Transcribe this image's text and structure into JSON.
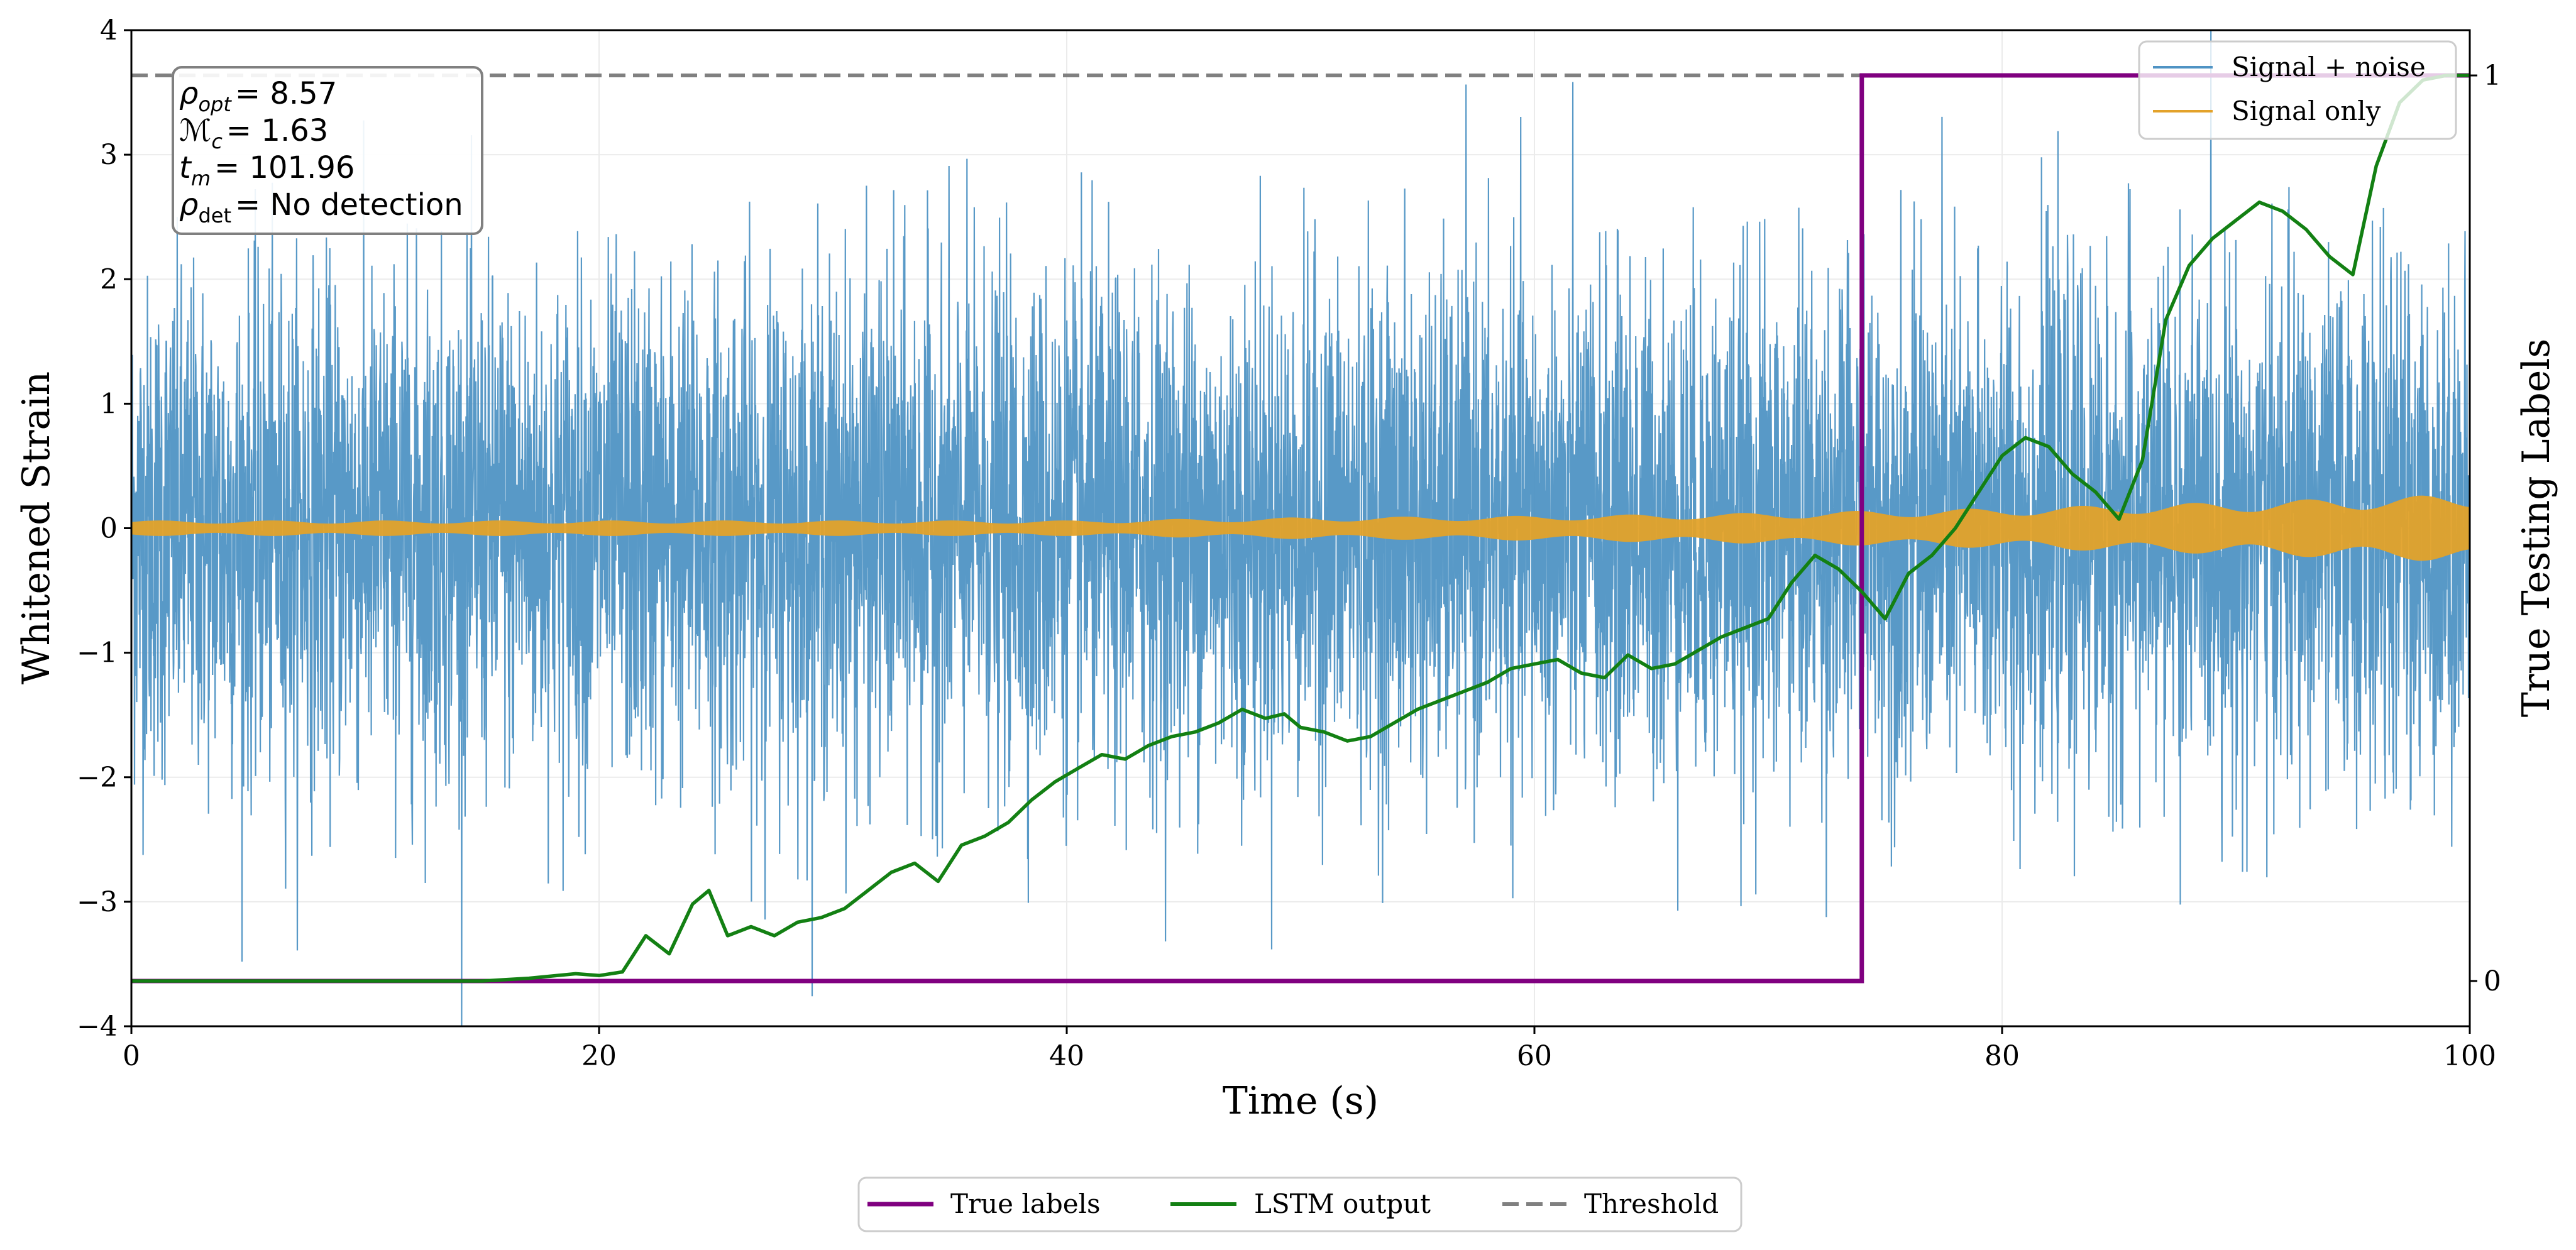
{
  "chart_data": {
    "type": "line",
    "xlabel": "Time (s)",
    "ylabel": "Whitened Strain",
    "y2label": "True Testing Labels",
    "xlim": [
      0,
      100
    ],
    "ylim": [
      -4,
      4
    ],
    "y2lim": [
      -0.05,
      1.05
    ],
    "xticks": [
      0,
      20,
      40,
      60,
      80,
      100
    ],
    "xtick_labels": [
      "0",
      "20",
      "40",
      "60",
      "80",
      "100"
    ],
    "yticks": [
      -4,
      -3,
      -2,
      -1,
      0,
      1,
      2,
      3,
      4
    ],
    "ytick_labels": [
      "−4",
      "−3",
      "−2",
      "−1",
      "0",
      "1",
      "2",
      "3",
      "4"
    ],
    "y2ticks": [
      0,
      1
    ],
    "y2tick_labels": [
      "0",
      "1"
    ],
    "grid": true,
    "colors": {
      "signal_noise": "#4f93c4",
      "signal_only": "#e3a22a",
      "true_labels": "#800080",
      "lstm": "#138013",
      "threshold": "#808080"
    },
    "annotation": {
      "rho_opt": {
        "symbol": "ρ",
        "sub": "opt",
        "value": "= 8.57"
      },
      "chirp_mass": {
        "symbol": "ℳ",
        "sub": "c",
        "value": "= 1.63"
      },
      "merger_time": {
        "symbol": "t",
        "sub": "m",
        "value": "= 101.96"
      },
      "rho_det": {
        "symbol": "ρ",
        "sub": "det",
        "value": "= No detection"
      }
    },
    "legend_top": [
      {
        "label": "Signal + noise",
        "color": "#4f93c4"
      },
      {
        "label": "Signal only",
        "color": "#e3a22a"
      }
    ],
    "legend_bottom": [
      {
        "label": "True labels",
        "color": "#800080",
        "style": "solid"
      },
      {
        "label": "LSTM output",
        "color": "#138013",
        "style": "solid"
      },
      {
        "label": "Threshold",
        "color": "#808080",
        "style": "dashed"
      }
    ],
    "signal_noise": {
      "description": "whitened noisy strain, approx. unit variance, spanning roughly -4 to 4",
      "std": 1.0,
      "range": [
        -4.0,
        4.0
      ]
    },
    "signal_only": {
      "description": "chirp envelope amplitude growing with time",
      "envelope_t": [
        0,
        20,
        40,
        50,
        60,
        70,
        80,
        90,
        100
      ],
      "envelope_amp": [
        0.05,
        0.05,
        0.05,
        0.07,
        0.08,
        0.1,
        0.13,
        0.17,
        0.22
      ]
    },
    "threshold": 1.0,
    "true_labels": {
      "t": [
        0,
        74,
        74,
        100
      ],
      "values": [
        0,
        0,
        1,
        1
      ]
    },
    "lstm_output": {
      "t": [
        0,
        15,
        17,
        19,
        20,
        21,
        22,
        23,
        24,
        24.7,
        25.5,
        26.5,
        27.5,
        28.5,
        29.5,
        30.5,
        31.5,
        32.5,
        33.5,
        34.5,
        35.5,
        36.5,
        37.5,
        38.5,
        39.5,
        40.5,
        41.5,
        42.5,
        43.5,
        44.5,
        45.5,
        46.5,
        47.5,
        48.5,
        49.3,
        50,
        51,
        52,
        53,
        54,
        55,
        56,
        57,
        58,
        59,
        60,
        61,
        62,
        63,
        64,
        65,
        66,
        67,
        68,
        69,
        70,
        71,
        72,
        73,
        74,
        75,
        76,
        77,
        78,
        79,
        80,
        81,
        82,
        83,
        84,
        85,
        86,
        87,
        88,
        89,
        90,
        91,
        92,
        93,
        94,
        95,
        96,
        97,
        98,
        99,
        100
      ],
      "values": [
        0,
        0,
        0.003,
        0.008,
        0.006,
        0.01,
        0.05,
        0.03,
        0.085,
        0.1,
        0.05,
        0.06,
        0.05,
        0.065,
        0.07,
        0.08,
        0.1,
        0.12,
        0.13,
        0.11,
        0.15,
        0.16,
        0.175,
        0.2,
        0.22,
        0.235,
        0.25,
        0.245,
        0.26,
        0.27,
        0.275,
        0.285,
        0.3,
        0.29,
        0.295,
        0.28,
        0.275,
        0.265,
        0.27,
        0.285,
        0.3,
        0.31,
        0.32,
        0.33,
        0.345,
        0.35,
        0.355,
        0.34,
        0.335,
        0.36,
        0.345,
        0.35,
        0.365,
        0.38,
        0.39,
        0.4,
        0.44,
        0.47,
        0.455,
        0.43,
        0.4,
        0.45,
        0.47,
        0.5,
        0.54,
        0.58,
        0.6,
        0.59,
        0.56,
        0.54,
        0.51,
        0.575,
        0.73,
        0.79,
        0.82,
        0.84,
        0.86,
        0.85,
        0.83,
        0.8,
        0.78,
        0.9,
        0.97,
        0.995,
        1.0,
        1.0
      ]
    }
  }
}
